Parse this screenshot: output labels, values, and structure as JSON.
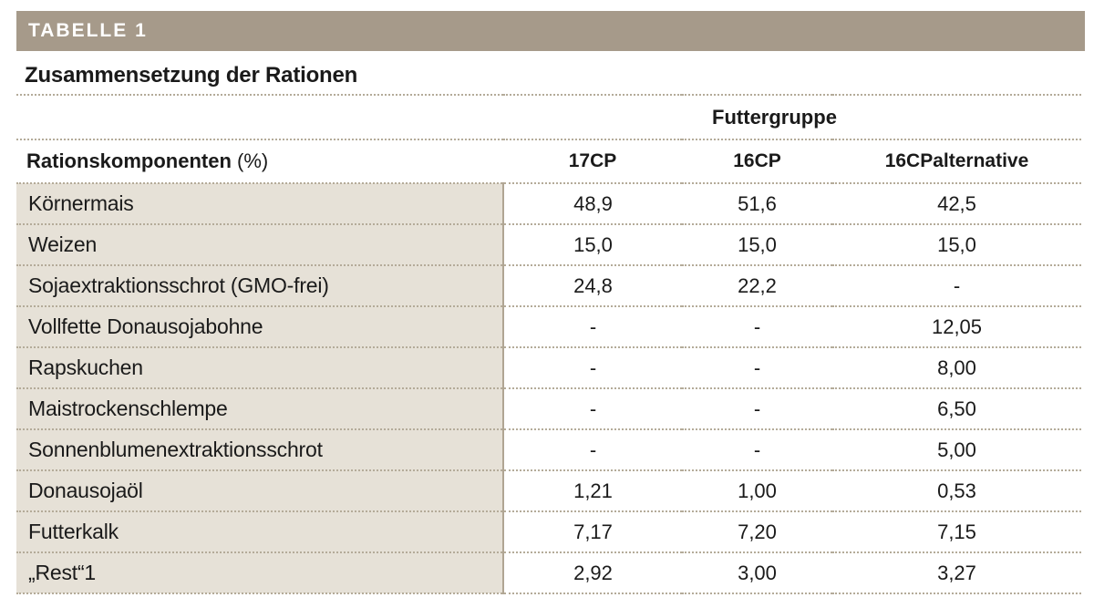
{
  "chart_data": {
    "type": "table",
    "label": "TABELLE 1",
    "title": "Zusammensetzung der Rationen",
    "group_header": "Futtergruppe",
    "row_header": "Rationskomponenten",
    "row_header_unit": "(%)",
    "columns": [
      "17CP",
      "16CP",
      "16CPalternative"
    ],
    "rows": [
      {
        "label": "Körnermais",
        "values": [
          "48,9",
          "51,6",
          "42,5"
        ]
      },
      {
        "label": "Weizen",
        "values": [
          "15,0",
          "15,0",
          "15,0"
        ]
      },
      {
        "label": "Sojaextraktionsschrot (GMO-frei)",
        "values": [
          "24,8",
          "22,2",
          "-"
        ]
      },
      {
        "label": "Vollfette Donausojabohne",
        "values": [
          "-",
          "-",
          "12,05"
        ]
      },
      {
        "label": "Rapskuchen",
        "values": [
          "-",
          "-",
          "8,00"
        ]
      },
      {
        "label": "Maistrockenschlempe",
        "values": [
          "-",
          "-",
          "6,50"
        ]
      },
      {
        "label": "Sonnenblumenextraktionsschrot",
        "values": [
          "-",
          "-",
          "5,00"
        ]
      },
      {
        "label": "Donausojaöl",
        "values": [
          "1,21",
          "1,00",
          "0,53"
        ]
      },
      {
        "label": "Futterkalk",
        "values": [
          "7,17",
          "7,20",
          "7,15"
        ]
      },
      {
        "label": "„Rest“1",
        "values": [
          "2,92",
          "3,00",
          "3,27"
        ]
      }
    ]
  },
  "colors": {
    "header_bar": "#a69a8a",
    "label_column_bg": "#e6e1d7",
    "dotted_rule": "#b4ab99",
    "divider": "#b0a593",
    "text": "#1a1a1a",
    "bar_text": "#ffffff"
  }
}
